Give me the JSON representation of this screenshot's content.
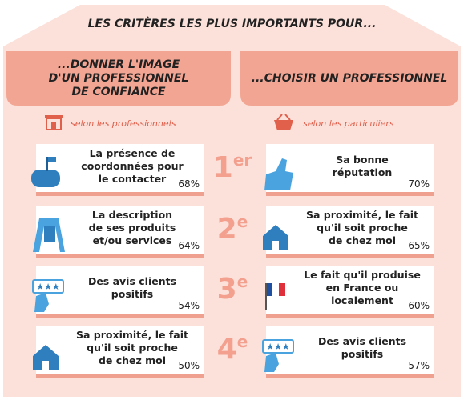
{
  "header": {
    "title": "LES CRITÈRES LES PLUS IMPORTANTS POUR..."
  },
  "columns": [
    {
      "title": [
        "...DONNER L'IMAGE",
        "D'UN PROFESSIONNEL",
        "DE CONFIANCE"
      ],
      "subtitle": "selon les professionnels"
    },
    {
      "title": [
        "...CHOISIR UN PROFESSIONNEL"
      ],
      "subtitle": "selon les particuliers"
    }
  ],
  "rows": [
    {
      "rank": {
        "number": "1",
        "suffix": "er"
      },
      "left": {
        "lines": [
          "La présence de",
          "coordonnées pour",
          "le contacter"
        ],
        "percent": "68%"
      },
      "right": {
        "lines": [
          "Sa bonne",
          "réputation"
        ],
        "percent": "70%"
      }
    },
    {
      "rank": {
        "number": "2",
        "suffix": "e"
      },
      "left": {
        "lines": [
          "La description",
          "de ses produits",
          "et/ou services"
        ],
        "percent": "64%"
      },
      "right": {
        "lines": [
          "Sa proximité, le fait",
          "qu'il soit proche",
          "de chez moi"
        ],
        "percent": "65%"
      }
    },
    {
      "rank": {
        "number": "3",
        "suffix": "e"
      },
      "left": {
        "lines": [
          "Des avis clients",
          "positifs"
        ],
        "percent": "54%"
      },
      "right": {
        "lines": [
          "Le fait qu'il produise",
          "en France ou",
          "localement"
        ],
        "percent": "60%"
      }
    },
    {
      "rank": {
        "number": "4",
        "suffix": "e"
      },
      "left": {
        "lines": [
          "Sa proximité, le fait",
          "qu'il soit proche",
          "de chez moi"
        ],
        "percent": "50%"
      },
      "right": {
        "lines": [
          "Des avis clients",
          "positifs"
        ],
        "percent": "57%"
      }
    }
  ]
}
